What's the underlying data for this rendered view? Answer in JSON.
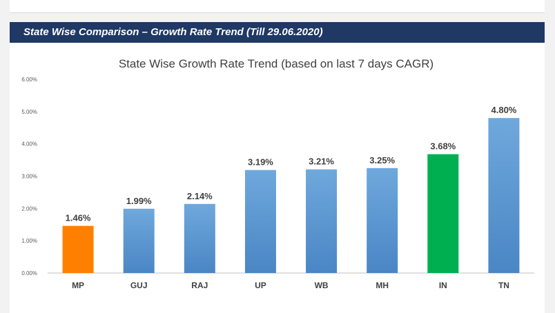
{
  "header": {
    "title": "State Wise Comparison – Growth Rate Trend (Till 29.06.2020)"
  },
  "colors": {
    "banner": "#1f3864",
    "default_bar": "#5b9bd5",
    "highlight_low": "#ff8000",
    "highlight_mid": "#00b050"
  },
  "chart_data": {
    "type": "bar",
    "title": "State Wise Growth Rate Trend (based on last 7 days CAGR)",
    "xlabel": "",
    "ylabel": "",
    "ylim": [
      0,
      6
    ],
    "yticks": [
      "0.00%",
      "1.00%",
      "2.00%",
      "3.00%",
      "4.00%",
      "5.00%",
      "6.00%"
    ],
    "categories": [
      "MP",
      "GUJ",
      "RAJ",
      "UP",
      "WB",
      "MH",
      "IN",
      "TN"
    ],
    "values": [
      1.46,
      1.99,
      2.14,
      3.19,
      3.21,
      3.25,
      3.68,
      4.8
    ],
    "labels": [
      "1.46%",
      "1.99%",
      "2.14%",
      "3.19%",
      "3.21%",
      "3.25%",
      "3.68%",
      "4.80%"
    ],
    "bar_colors": [
      "#ff8000",
      "#5b9bd5",
      "#5b9bd5",
      "#5b9bd5",
      "#5b9bd5",
      "#5b9bd5",
      "#00b050",
      "#5b9bd5"
    ],
    "grid": false,
    "legend": "none"
  }
}
